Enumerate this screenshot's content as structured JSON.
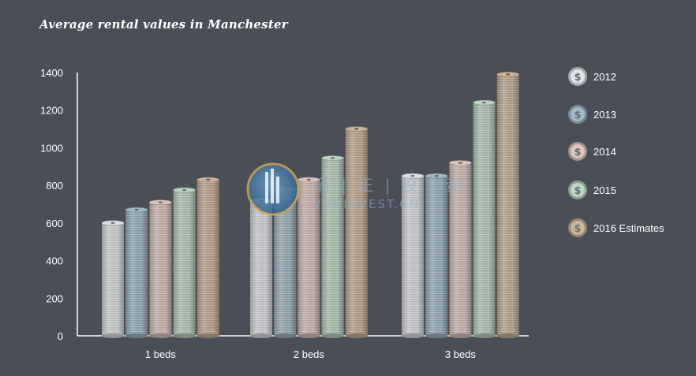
{
  "title": "Average rental values in Manchester",
  "chart_data": {
    "type": "bar",
    "title": "Average rental values in Manchester",
    "categories": [
      "1 beds",
      "2 beds",
      "3 beds"
    ],
    "series": [
      {
        "name": "2012",
        "values": [
          600,
          720,
          850
        ],
        "color": "#c4c7c9"
      },
      {
        "name": "2013",
        "values": [
          670,
          780,
          850
        ],
        "color": "#8fa3ad"
      },
      {
        "name": "2014",
        "values": [
          710,
          830,
          920
        ],
        "color": "#c0aea6"
      },
      {
        "name": "2015",
        "values": [
          775,
          945,
          1240
        ],
        "color": "#a5bcaa"
      },
      {
        "name": "2016 Estimates",
        "values": [
          830,
          1100,
          1390
        ],
        "color": "#b39e88"
      }
    ],
    "yticks": [
      "0",
      "200",
      "400",
      "600",
      "800",
      "1000",
      "1200",
      "1400"
    ],
    "ylim": [
      0,
      1400
    ],
    "xlabel": "",
    "ylabel": "",
    "grid": false,
    "legend": "right"
  },
  "watermark": {
    "chinese": "涌 | 正 | 投 | 资",
    "latin": "YOUINVEST.CN"
  },
  "legend_icon": "dollar-coin-icon"
}
